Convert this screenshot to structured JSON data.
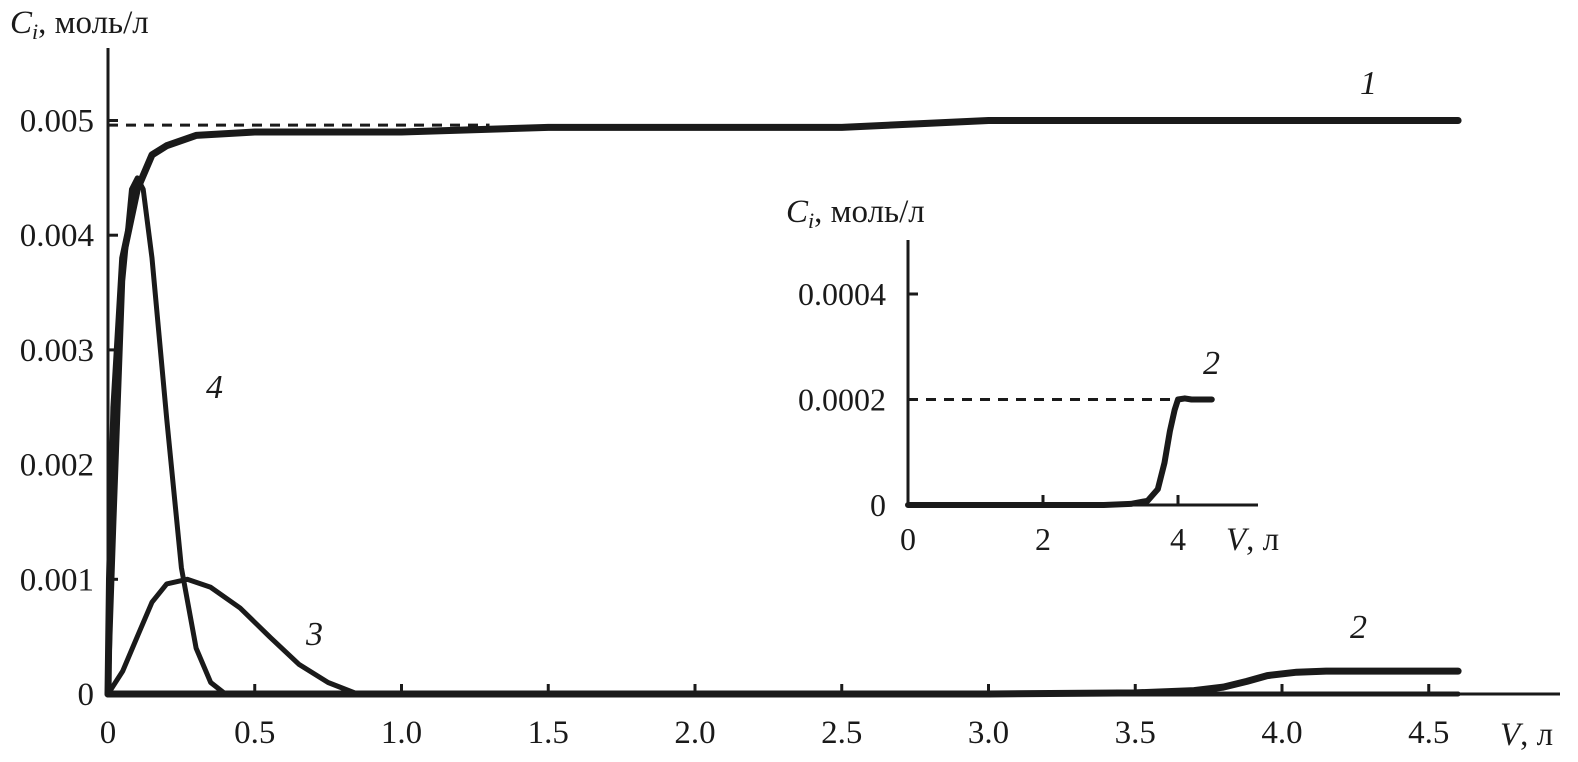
{
  "chart_data": [
    {
      "type": "line",
      "ylabel": {
        "symbol": "C",
        "sub": "i",
        "unit": ", моль/л"
      },
      "xlabel": {
        "symbol": "V",
        "unit": ", л"
      },
      "xlim": [
        0,
        4.62
      ],
      "ylim": [
        0,
        0.0055
      ],
      "x_ticks": [
        0,
        0.5,
        1.0,
        1.5,
        2.0,
        2.5,
        3.0,
        3.5,
        4.0,
        4.5
      ],
      "x_tick_labels": [
        "0",
        "0.5",
        "1.0",
        "1.5",
        "2.0",
        "2.5",
        "3.0",
        "3.5",
        "4.0",
        "4.5"
      ],
      "y_ticks": [
        0,
        0.001,
        0.002,
        0.003,
        0.004,
        0.005
      ],
      "y_tick_labels": [
        "0",
        "0.001",
        "0.002",
        "0.003",
        "0.004",
        "0.005"
      ],
      "reference_line": {
        "y": 0.00496,
        "x_range": [
          0,
          1.3
        ],
        "style": "dashed"
      },
      "series": [
        {
          "name": "1",
          "x": [
            0,
            0.005,
            0.02,
            0.05,
            0.1,
            0.15,
            0.2,
            0.3,
            0.5,
            0.7,
            1.0,
            1.5,
            2.0,
            2.5,
            3.0,
            3.5,
            4.0,
            4.6
          ],
          "y": [
            0,
            0.001,
            0.0025,
            0.0038,
            0.0044,
            0.0047,
            0.00478,
            0.00487,
            0.0049,
            0.0049,
            0.0049,
            0.00494,
            0.00494,
            0.00494,
            0.005,
            0.005,
            0.005,
            0.005
          ]
        },
        {
          "name": "2",
          "x": [
            0,
            3.0,
            3.5,
            3.7,
            3.8,
            3.88,
            3.95,
            4.05,
            4.15,
            4.3,
            4.6
          ],
          "y": [
            0,
            0,
            1e-05,
            3e-05,
            6e-05,
            0.00011,
            0.00016,
            0.00019,
            0.0002,
            0.0002,
            0.0002
          ]
        },
        {
          "name": "3",
          "x": [
            0,
            0.05,
            0.1,
            0.15,
            0.2,
            0.27,
            0.35,
            0.45,
            0.55,
            0.65,
            0.75,
            0.85,
            1.0
          ],
          "y": [
            0,
            0.0002,
            0.0005,
            0.0008,
            0.00096,
            0.001,
            0.00093,
            0.00075,
            0.0005,
            0.00026,
            0.0001,
            0,
            0
          ]
        },
        {
          "name": "4",
          "x": [
            0,
            0.02,
            0.05,
            0.08,
            0.1,
            0.12,
            0.15,
            0.2,
            0.25,
            0.3,
            0.35,
            0.4,
            0.45,
            0.6,
            4.6
          ],
          "y": [
            0,
            0.0015,
            0.0036,
            0.0044,
            0.0045,
            0.0044,
            0.0038,
            0.0024,
            0.0011,
            0.0004,
            0.0001,
            0,
            0,
            0,
            0
          ]
        }
      ]
    },
    {
      "type": "line",
      "ylabel": {
        "symbol": "C",
        "sub": "i",
        "unit": ", моль/л"
      },
      "xlabel": {
        "symbol": "V",
        "unit": ", л"
      },
      "xlim": [
        0,
        5.1
      ],
      "ylim": [
        0,
        0.0005
      ],
      "x_ticks": [
        0,
        2,
        4
      ],
      "x_tick_labels": [
        "0",
        "2",
        "4"
      ],
      "y_ticks": [
        0,
        0.0002,
        0.0004
      ],
      "y_tick_labels": [
        "0",
        "0.0002",
        "0.0004"
      ],
      "reference_line": {
        "y": 0.0002,
        "x_range": [
          0,
          4.0
        ],
        "style": "dashed"
      },
      "series": [
        {
          "name": "2",
          "x": [
            0,
            2.9,
            3.3,
            3.55,
            3.7,
            3.8,
            3.88,
            3.95,
            4.0,
            4.1,
            4.2,
            4.5
          ],
          "y": [
            0,
            0,
            2e-06,
            8e-06,
            3e-05,
            8e-05,
            0.00014,
            0.00018,
            0.0002,
            0.000202,
            0.0002,
            0.0002
          ]
        }
      ]
    }
  ]
}
